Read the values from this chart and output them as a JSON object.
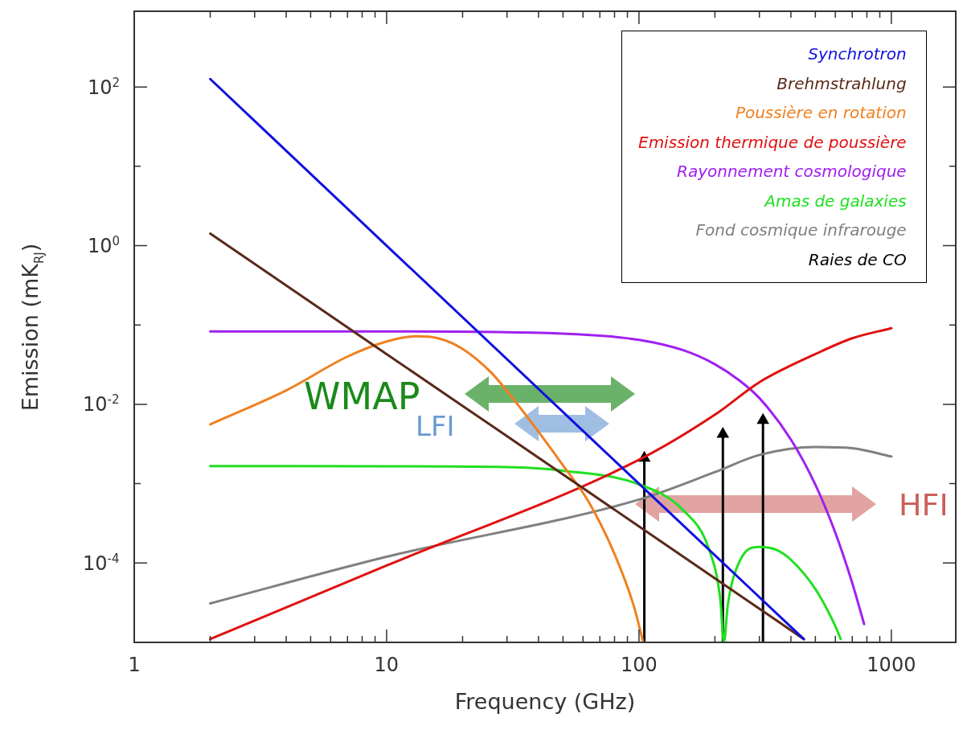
{
  "chart_data": {
    "type": "line",
    "xlabel": "Frequency (GHz)",
    "ylabel": "Emission (mK$_{RJ}$)",
    "log": "xy",
    "legend": "top right",
    "xlim": [
      1,
      1800
    ],
    "ylim": [
      1e-05,
      900
    ],
    "xticks": [
      1,
      {
        "value": 2,
        "label": null
      },
      {
        "value": 3,
        "label": null
      },
      {
        "value": 4,
        "label": null
      },
      {
        "value": 5,
        "label": null
      },
      {
        "value": 6,
        "label": null
      },
      {
        "value": 7,
        "label": null
      },
      {
        "value": 8,
        "label": null
      },
      {
        "value": 9,
        "label": null
      },
      10,
      {
        "value": 20,
        "label": null
      },
      {
        "value": 30,
        "label": null
      },
      {
        "value": 40,
        "label": null
      },
      {
        "value": 50,
        "label": null
      },
      {
        "value": 60,
        "label": null
      },
      {
        "value": 70,
        "label": null
      },
      {
        "value": 80,
        "label": null
      },
      {
        "value": 90,
        "label": null
      },
      100,
      {
        "value": 200,
        "label": null
      },
      {
        "value": 300,
        "label": null
      },
      {
        "value": 400,
        "label": null
      },
      {
        "value": 500,
        "label": null
      },
      {
        "value": 600,
        "label": null
      },
      {
        "value": 700,
        "label": null
      },
      {
        "value": 800,
        "label": null
      },
      {
        "value": 900,
        "label": null
      },
      1000
    ],
    "yticks": [
      {
        "value": 100,
        "label": "10$^{2}$"
      },
      {
        "value": 10,
        "label": null
      },
      {
        "value": 1,
        "label": "10$^{0}$"
      },
      {
        "value": 0.1,
        "label": null
      },
      {
        "value": 0.01,
        "label": "10$^{-2}$"
      },
      {
        "value": 0.001,
        "label": null
      },
      {
        "value": 0.0001,
        "label": "10$^{-4}$"
      }
    ],
    "series": [
      {
        "name": "Synchrotron",
        "color": "#1010e0",
        "x": [
          2,
          10,
          100,
          450
        ],
        "values": [
          126,
          1.0,
          0.001,
          1.1e-05
        ]
      },
      {
        "name": "Brehmstrahlung",
        "color": "#5a2a1a",
        "x": [
          2,
          10,
          100,
          450
        ],
        "values": [
          1.42,
          0.043,
          0.00029,
          1.1e-05
        ]
      },
      {
        "name": "Poussière en rotation",
        "color": "#f08020",
        "x": [
          2,
          4,
          7,
          10,
          13,
          16,
          20,
          26,
          33,
          40,
          50,
          63,
          80,
          95,
          104
        ],
        "values": [
          0.0056,
          0.015,
          0.04,
          0.062,
          0.072,
          0.068,
          0.05,
          0.025,
          0.01,
          0.0045,
          0.0017,
          0.0006,
          0.00013,
          3e-05,
          1e-05
        ]
      },
      {
        "name": "Emission thermique de poussière",
        "color": "#e01010",
        "x": [
          2,
          10,
          100,
          200,
          300,
          500,
          700,
          1000
        ],
        "values": [
          1.1e-05,
          9.3e-05,
          0.002,
          0.0074,
          0.019,
          0.043,
          0.068,
          0.091
        ]
      },
      {
        "name": "Rayonnement cosmologique",
        "color": "#a020f0",
        "x": [
          2,
          10,
          50,
          100,
          150,
          200,
          250,
          300,
          400,
          500,
          600,
          700,
          780
        ],
        "values": [
          0.083,
          0.083,
          0.078,
          0.065,
          0.048,
          0.032,
          0.02,
          0.012,
          0.0036,
          0.00097,
          0.00024,
          5.6e-05,
          1.7e-05
        ]
      },
      {
        "name": "Amas de galaxies",
        "color": "#20e020",
        "x": [
          2,
          10,
          30,
          50,
          100,
          150,
          190,
          210,
          217,
          225,
          250,
          300,
          350,
          400,
          500,
          600,
          630
        ],
        "values": [
          0.00167,
          0.00166,
          0.00162,
          0.00146,
          0.00098,
          0.00046,
          0.000145,
          3.5e-05,
          1e-05,
          3e-05,
          0.000104,
          0.00016,
          0.000147,
          0.00011,
          4.7e-05,
          1.6e-05,
          1.1e-05
        ]
      },
      {
        "name": "Fond cosmique infrarouge",
        "color": "#808080",
        "x": [
          2,
          10,
          100,
          200,
          300,
          500,
          700,
          1000
        ],
        "values": [
          3.1e-05,
          0.00012,
          0.00063,
          0.0014,
          0.0023,
          0.0029,
          0.0028,
          0.0022
        ]
      },
      {
        "name": "Raies de CO",
        "type": "lollipop",
        "marker": "triangle",
        "color": "#000000",
        "x": [
          105,
          215,
          310
        ],
        "values": [
          0.0021,
          0.0042,
          0.0063
        ]
      }
    ],
    "annotations": [
      "WMAP",
      "LFI",
      "HFI"
    ]
  }
}
